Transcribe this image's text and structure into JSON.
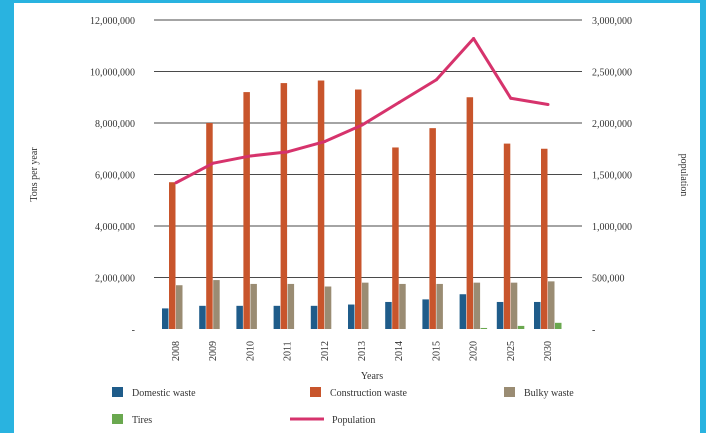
{
  "chart_data": {
    "type": "bar",
    "categories": [
      "2008",
      "2009",
      "2010",
      "2011",
      "2012",
      "2013",
      "2014",
      "2015",
      "2020",
      "2025",
      "2030"
    ],
    "series": [
      {
        "name": "Domestic waste",
        "kind": "bar",
        "color": "#1f5c8a",
        "axis": "left",
        "values": [
          800000,
          900000,
          900000,
          900000,
          900000,
          950000,
          1050000,
          1150000,
          1350000,
          1050000,
          1050000
        ]
      },
      {
        "name": "Construction waste",
        "kind": "bar",
        "color": "#c8552c",
        "axis": "left",
        "values": [
          5700000,
          8000000,
          9200000,
          9550000,
          9650000,
          9300000,
          7050000,
          7800000,
          9000000,
          7200000,
          7000000
        ]
      },
      {
        "name": "Bulky waste",
        "kind": "bar",
        "color": "#9a8c73",
        "axis": "left",
        "values": [
          1700000,
          1900000,
          1750000,
          1750000,
          1650000,
          1800000,
          1750000,
          1750000,
          1800000,
          1800000,
          1850000
        ]
      },
      {
        "name": "Tires",
        "kind": "bar",
        "color": "#6aa84f",
        "axis": "left",
        "values": [
          0,
          0,
          0,
          0,
          0,
          0,
          0,
          0,
          40000,
          120000,
          240000
        ]
      },
      {
        "name": "Population",
        "kind": "line",
        "color": "#d6336c",
        "axis": "right",
        "values": [
          1420000,
          1610000,
          1680000,
          1720000,
          1820000,
          1980000,
          2200000,
          2420000,
          2820000,
          2240000,
          2180000
        ]
      }
    ],
    "xlabel": "Years",
    "ylabel": "Tons per year",
    "y2label": "population",
    "ylim": [
      0,
      12000000
    ],
    "y2lim": [
      0,
      3000000
    ],
    "yticks": [
      "-",
      "2,000,000",
      "4,000,000",
      "6,000,000",
      "8,000,000",
      "10,000,000",
      "12,000,000"
    ],
    "y2ticks": [
      "-",
      "500,000",
      "1,000,000",
      "1,500,000",
      "2,000,000",
      "2,500,000",
      "3,000,000"
    ],
    "grid": true,
    "legend_position": "bottom"
  }
}
